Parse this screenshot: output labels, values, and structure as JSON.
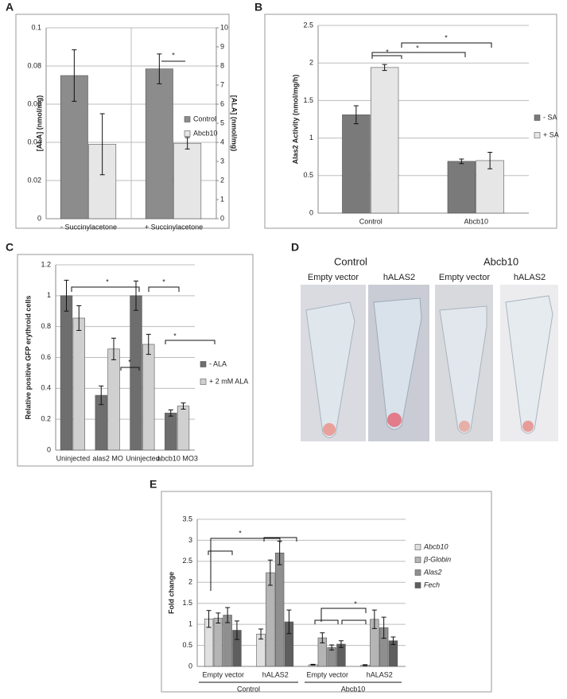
{
  "chart_data": [
    {
      "type": "bar",
      "label": "A",
      "y_label": "[ALA] (nmol/mg)",
      "y2_label": "[ALA] (nmol/mg)",
      "categories": [
        "- Succinylacetone",
        "+ Succinylacetone"
      ],
      "series": [
        {
          "name": "Control",
          "color": "#8c8c8c",
          "values": [
            0.075,
            0.0785
          ],
          "errors": [
            0.0135,
            0.0078
          ]
        },
        {
          "name": "Abcb10",
          "color": "#e6e6e6",
          "values": [
            0.039,
            0.0395
          ],
          "errors": [
            0.016,
            0.003
          ]
        }
      ],
      "ylim": [
        0,
        0.1
      ],
      "yticks": [
        0,
        0.02,
        0.04,
        0.06,
        0.08,
        0.1
      ],
      "y2lim": [
        0,
        10
      ],
      "y2ticks": [
        0,
        1,
        2,
        3,
        4,
        5,
        6,
        7,
        8,
        9,
        10
      ],
      "grid": true,
      "legend": "right",
      "annotations": [
        "*"
      ]
    },
    {
      "type": "bar",
      "label": "B",
      "y_label": "Alas2 Activity (nmol/mg/h)",
      "categories": [
        "Control",
        "Abcb10"
      ],
      "series": [
        {
          "name": "- SA",
          "color": "#7a7a7a",
          "values": [
            1.31,
            0.69
          ],
          "errors": [
            0.12,
            0.03
          ]
        },
        {
          "name": "+ SA",
          "color": "#e6e6e6",
          "values": [
            1.94,
            0.7
          ],
          "errors": [
            0.04,
            0.11
          ]
        }
      ],
      "ylim": [
        0,
        2.5
      ],
      "yticks": [
        0,
        0.5,
        1,
        1.5,
        2,
        2.5
      ],
      "grid": true,
      "legend": "right",
      "annotations": [
        "*",
        "*",
        "*"
      ]
    },
    {
      "type": "bar",
      "label": "C",
      "y_label": "Relative positive GFP erythroid cells",
      "categories": [
        "Uninjected",
        "alas2 MO",
        "Uninjected",
        "abcb10 MO3"
      ],
      "series": [
        {
          "name": "- ALA",
          "color": "#6e6e6e",
          "values": [
            1,
            0.355,
            1,
            0.24
          ],
          "errors": [
            0.1,
            0.06,
            0.095,
            0.02
          ]
        },
        {
          "name": "+ 2 mM ALA",
          "color": "#d0d0d0",
          "values": [
            0.855,
            0.655,
            0.685,
            0.285
          ],
          "errors": [
            0.08,
            0.07,
            0.065,
            0.02
          ]
        }
      ],
      "ylim": [
        0,
        1.2
      ],
      "yticks": [
        0,
        0.2,
        0.4,
        0.6,
        0.8,
        1,
        1.2
      ],
      "grid": true,
      "legend": "right",
      "annotations": [
        "*",
        "*",
        "*",
        "*"
      ]
    },
    {
      "type": "bar",
      "label": "E",
      "y_label": "Fold change",
      "categories": [
        "Empty vector",
        "hALAS2",
        "Empty vector",
        "hALAS2"
      ],
      "groups": [
        "Control",
        "Abcb10"
      ],
      "series": [
        {
          "name": "Abcb10",
          "color": "#e0e0e0",
          "values": [
            1.13,
            0.77,
            0.04,
            0.03
          ],
          "errors": [
            0.2,
            0.12,
            0.01,
            0.01
          ]
        },
        {
          "name": "β-Globin",
          "color": "#b5b5b5",
          "values": [
            1.15,
            2.23,
            0.68,
            1.12
          ],
          "errors": [
            0.12,
            0.3,
            0.12,
            0.22
          ]
        },
        {
          "name": "Alas2",
          "color": "#8f8f8f",
          "values": [
            1.22,
            2.7,
            0.45,
            0.92
          ],
          "errors": [
            0.18,
            0.28,
            0.06,
            0.25
          ]
        },
        {
          "name": "Fech",
          "color": "#5e5e5e",
          "values": [
            0.86,
            1.06,
            0.53,
            0.61
          ],
          "errors": [
            0.22,
            0.28,
            0.08,
            0.09
          ]
        }
      ],
      "ylim": [
        0,
        3.5
      ],
      "yticks": [
        0,
        0.5,
        1,
        1.5,
        2,
        2.5,
        3,
        3.5
      ],
      "grid": true,
      "legend": "right",
      "annotations": [
        "*",
        "*"
      ]
    }
  ],
  "photo_panel": {
    "label": "D",
    "groups": [
      "Control",
      "Abcb10"
    ],
    "conditions": [
      "Empty vector",
      "hALAS2",
      "Empty vector",
      "hALAS2"
    ]
  }
}
